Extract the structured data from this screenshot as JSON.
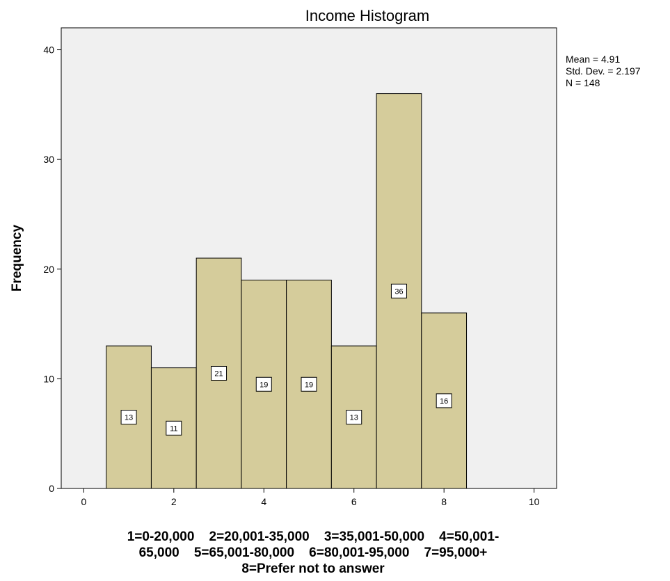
{
  "chart_data": {
    "type": "bar",
    "title": "Income Histogram",
    "xlabel_lines": [
      "1=0-20,000    2=20,001-35,000    3=35,001-50,000    4=50,001-",
      "65,000    5=65,001-80,000    6=80,001-95,000    7=95,000+",
      "8=Prefer not to answer"
    ],
    "ylabel": "Frequency",
    "x": [
      1,
      2,
      3,
      4,
      5,
      6,
      7,
      8
    ],
    "values": [
      13,
      11,
      21,
      19,
      19,
      13,
      36,
      16
    ],
    "xlim": [
      -0.5,
      10.5
    ],
    "ylim": [
      0,
      42
    ],
    "xticks": [
      "0",
      "2",
      "4",
      "6",
      "8",
      "10"
    ],
    "yticks": [
      "0",
      "10",
      "20",
      "30",
      "40"
    ],
    "stats": {
      "mean": "Mean = 4.91",
      "std": "Std. Dev. = 2.197",
      "n": "N = 148"
    },
    "colors": {
      "bar_fill": "#d5cc9b",
      "plot_bg": "#f0f0f0",
      "stroke": "#000000"
    },
    "grid": false
  }
}
